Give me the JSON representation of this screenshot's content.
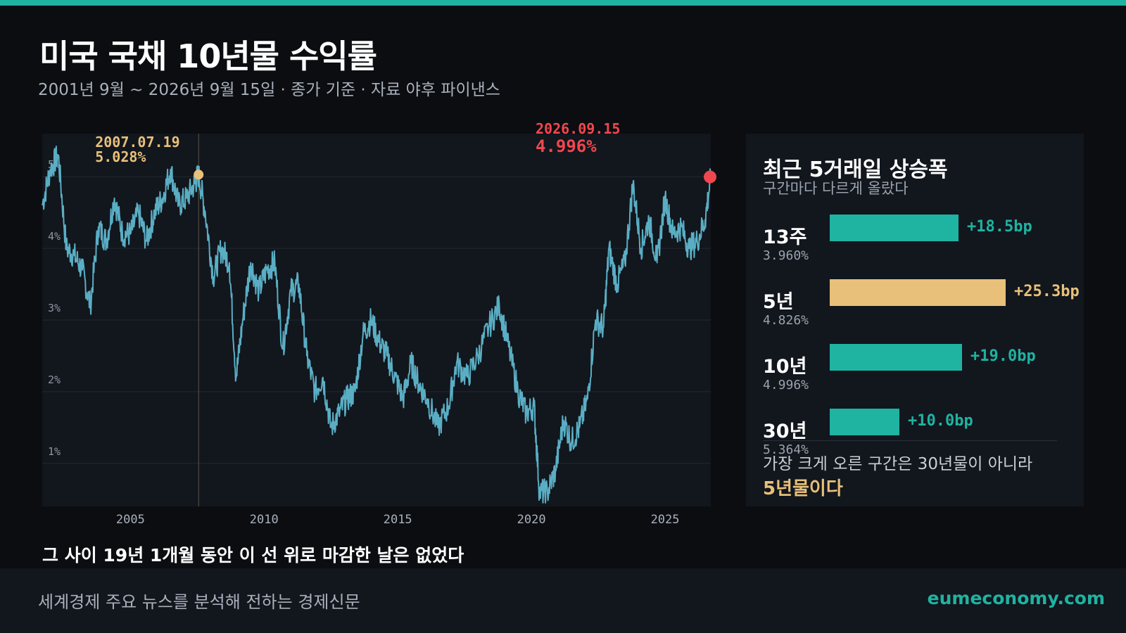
{
  "header": {
    "title": "미국 국채 10년물 수익률",
    "subtitle": "2001년 9월 ~ 2026년 9월 15일 · 종가 기준 · 자료 야후 파이낸스"
  },
  "colors": {
    "accent": "#1fb3a1",
    "line": "#5aaec4",
    "highlight": "#e8c07a",
    "latest": "#f0474f",
    "background": "#0b0d11",
    "plot_bg": "#12161d"
  },
  "chart_data": {
    "type": "line",
    "title": "미국 국채 10년물 수익률",
    "x_range": [
      "2001-09",
      "2026-09-15"
    ],
    "ylim": [
      0.4,
      5.6
    ],
    "y_ticks": [
      1,
      2,
      3,
      4,
      5
    ],
    "y_tick_labels": [
      "1%",
      "2%",
      "3%",
      "4%",
      "5%"
    ],
    "x_ticks": [
      2005,
      2010,
      2015,
      2020,
      2025
    ],
    "x_tick_labels": [
      "2005",
      "2010",
      "2015",
      "2020",
      "2025"
    ],
    "grid": true,
    "series": [
      {
        "values_note": "",
        "x": [
          2001.7,
          2002.0,
          2002.3,
          2002.6,
          2002.9,
          2003.2,
          2003.5,
          2003.8,
          2004.1,
          2004.4,
          2004.7,
          2005.0,
          2005.3,
          2005.6,
          2005.9,
          2006.2,
          2006.5,
          2006.8,
          2007.1,
          2007.4,
          2007.55,
          2007.8,
          2008.1,
          2008.4,
          2008.7,
          2008.95,
          2009.2,
          2009.5,
          2009.8,
          2010.1,
          2010.4,
          2010.7,
          2011.0,
          2011.3,
          2011.6,
          2011.9,
          2012.2,
          2012.5,
          2012.8,
          2013.1,
          2013.4,
          2013.7,
          2014.0,
          2014.3,
          2014.6,
          2014.9,
          2015.2,
          2015.5,
          2015.8,
          2016.1,
          2016.5,
          2016.9,
          2017.2,
          2017.6,
          2018.0,
          2018.4,
          2018.8,
          2019.1,
          2019.5,
          2019.8,
          2020.1,
          2020.3,
          2020.6,
          2020.9,
          2021.2,
          2021.5,
          2021.8,
          2022.1,
          2022.4,
          2022.7,
          2022.9,
          2023.2,
          2023.5,
          2023.8,
          2024.1,
          2024.4,
          2024.7,
          2025.0,
          2025.3,
          2025.6,
          2025.9,
          2026.2,
          2026.5,
          2026.71
        ],
        "y": [
          4.6,
          5.1,
          5.3,
          4.0,
          3.9,
          3.7,
          3.2,
          4.3,
          4.1,
          4.7,
          4.2,
          4.2,
          4.5,
          4.1,
          4.5,
          4.7,
          5.1,
          4.6,
          4.7,
          4.9,
          5.028,
          4.5,
          3.6,
          4.0,
          3.8,
          2.2,
          3.0,
          3.8,
          3.4,
          3.7,
          3.8,
          2.6,
          3.4,
          3.5,
          2.5,
          2.0,
          2.2,
          1.5,
          1.7,
          1.9,
          2.0,
          2.8,
          3.0,
          2.7,
          2.5,
          2.2,
          1.9,
          2.4,
          2.1,
          1.9,
          1.5,
          1.8,
          2.4,
          2.2,
          2.5,
          2.9,
          3.2,
          2.7,
          2.0,
          1.7,
          1.8,
          0.6,
          0.6,
          0.9,
          1.6,
          1.3,
          1.5,
          1.9,
          3.0,
          2.9,
          4.0,
          3.5,
          3.8,
          4.9,
          4.0,
          4.4,
          3.8,
          4.7,
          4.2,
          4.3,
          4.0,
          4.1,
          4.4,
          4.996
        ]
      }
    ],
    "annotations": [
      {
        "date": "2007.07.19",
        "value": "5.028%",
        "x": 2007.55,
        "y": 5.028
      },
      {
        "date": "2026.09.15",
        "value": "4.996%",
        "x": 2026.71,
        "y": 4.996
      }
    ],
    "caption": "그 사이 19년 1개월 동안 이 선 위로 마감한 날은 없었다"
  },
  "panel": {
    "title": "최근 5거래일 상승폭",
    "subtitle": "구간마다 다르게 올랐다",
    "rows": [
      {
        "label": "13주",
        "yield": "3.960%",
        "bp": 18.5,
        "bp_label": "+18.5bp",
        "color": "#1fb3a1"
      },
      {
        "label": "5년",
        "yield": "4.826%",
        "bp": 25.3,
        "bp_label": "+25.3bp",
        "color": "#e8c07a"
      },
      {
        "label": "10년",
        "yield": "4.996%",
        "bp": 19.0,
        "bp_label": "+19.0bp",
        "color": "#1fb3a1"
      },
      {
        "label": "30년",
        "yield": "5.364%",
        "bp": 10.0,
        "bp_label": "+10.0bp",
        "color": "#1fb3a1"
      }
    ],
    "note_line1": "가장 크게 오른 구간은 30년물이 아니라",
    "note_line2": "5년물이다"
  },
  "footer": {
    "tagline": "세계경제 주요 뉴스를 분석해 전하는 경제신문",
    "site": "eumeconomy.com"
  }
}
